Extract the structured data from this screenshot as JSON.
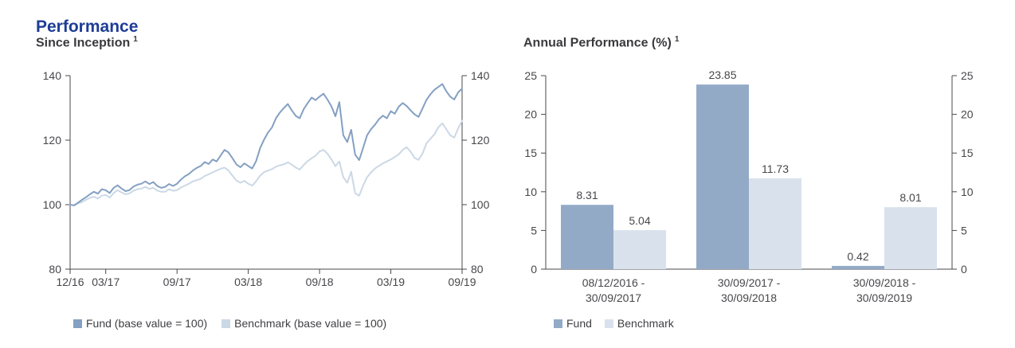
{
  "page": {
    "title": "Performance",
    "title_color": "#1E3D96",
    "axis_color": "#4a4a4e",
    "label_color": "#47474b"
  },
  "chart_data": [
    {
      "type": "line",
      "title": "Since Inception",
      "footnote": "1",
      "xlim_months": [
        0,
        33
      ],
      "x_tick_labels": [
        "12/16",
        "03/17",
        "09/17",
        "03/18",
        "09/18",
        "03/19",
        "09/19"
      ],
      "x_tick_positions": [
        0,
        3,
        9,
        15,
        21,
        27,
        33
      ],
      "ylim": [
        80,
        140
      ],
      "y_ticks": [
        80,
        100,
        120,
        140
      ],
      "legend_position": "bottom",
      "grid": false,
      "series": [
        {
          "name": "Fund (base value = 100)",
          "color": "#84A0C2",
          "values": [
            100,
            99.8,
            100.6,
            101.5,
            102.3,
            103.2,
            104,
            103.4,
            104.8,
            104.5,
            103.6,
            105.2,
            106,
            105,
            104.2,
            104.5,
            105.6,
            106.2,
            106.5,
            107.2,
            106.4,
            107,
            105.8,
            105.2,
            105.5,
            106.4,
            105.8,
            106.5,
            107.8,
            108.8,
            109.5,
            110.6,
            111.4,
            112,
            113.2,
            112.6,
            114,
            113.4,
            115.2,
            117,
            116.2,
            114.4,
            112.5,
            111.6,
            112.8,
            112,
            111.2,
            113.6,
            117.5,
            120.2,
            122.4,
            124,
            126.8,
            128.6,
            130,
            131.2,
            129.2,
            127.5,
            126.8,
            129.6,
            131.5,
            133.2,
            132.4,
            133.5,
            134.4,
            132.6,
            130.5,
            127.4,
            131.8,
            121.5,
            119.4,
            123.2,
            115.5,
            113.8,
            117.6,
            121.5,
            123.4,
            124.8,
            126.5,
            127.6,
            126.8,
            129,
            128.2,
            130.4,
            131.5,
            130.6,
            129.2,
            128,
            127.2,
            129.8,
            132.5,
            134.2,
            135.6,
            136.5,
            137.4,
            135.2,
            133.5,
            132.6,
            134.8,
            136
          ]
        },
        {
          "name": "Benchmark (base value = 100)",
          "color": "#CBD8E6",
          "values": [
            100,
            99.7,
            100.4,
            100.8,
            101.5,
            102.1,
            102.5,
            101.9,
            102.8,
            103,
            102.2,
            103.6,
            104.5,
            103.8,
            103.2,
            103.5,
            104.3,
            104.8,
            105,
            105.5,
            104.9,
            105.2,
            104.4,
            104,
            104,
            104.8,
            104.3,
            104.5,
            105.3,
            105.9,
            106.5,
            107.2,
            107.6,
            108,
            108.9,
            109.4,
            110,
            110.6,
            111.1,
            111.5,
            110.6,
            109,
            107.5,
            106.8,
            107.4,
            106.5,
            105.9,
            107.3,
            109,
            110.1,
            110.6,
            111,
            111.8,
            112.2,
            112.5,
            113.1,
            112.4,
            111.5,
            110.9,
            112.3,
            113.5,
            114.4,
            115.2,
            116.5,
            117,
            115.8,
            114,
            111.9,
            113.4,
            108.5,
            106.8,
            110.2,
            103.5,
            102.8,
            105.9,
            108.5,
            110,
            111.2,
            112,
            112.8,
            113.4,
            114,
            114.8,
            115.6,
            117,
            117.8,
            116.4,
            114.5,
            113.9,
            115.8,
            119,
            120.4,
            121.8,
            124,
            125.2,
            123.4,
            121.5,
            120.8,
            123.6,
            126
          ]
        }
      ]
    },
    {
      "type": "bar",
      "title": "Annual Performance (%)",
      "footnote": "1",
      "categories": [
        {
          "line1": "08/12/2016 -",
          "line2": "30/09/2017"
        },
        {
          "line1": "30/09/2017 -",
          "line2": "30/09/2018"
        },
        {
          "line1": "30/09/2018 -",
          "line2": "30/09/2019"
        }
      ],
      "ylim": [
        0,
        25
      ],
      "y_ticks": [
        0,
        5,
        10,
        15,
        20,
        25
      ],
      "legend_position": "bottom",
      "grid": false,
      "series": [
        {
          "name": "Fund",
          "color": "#93AAC7",
          "values": [
            8.31,
            23.85,
            0.42
          ]
        },
        {
          "name": "Benchmark",
          "color": "#D9E2EC",
          "values": [
            5.04,
            11.73,
            8.01
          ]
        }
      ]
    }
  ]
}
